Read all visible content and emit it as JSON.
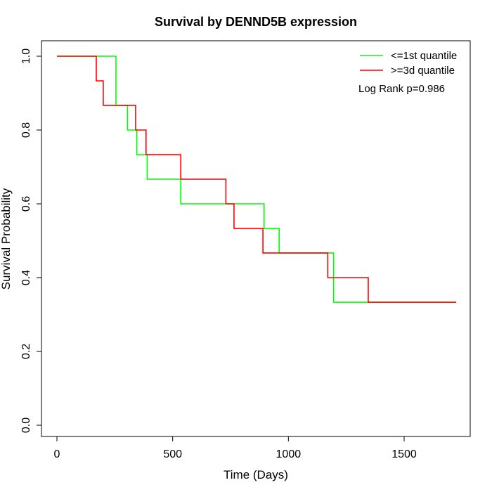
{
  "chart_data": {
    "type": "line",
    "title": "Survival by DENND5B expression",
    "xlabel": "Time (Days)",
    "ylabel": "Survival Probability",
    "xlim": [
      0,
      1750
    ],
    "ylim": [
      0,
      1
    ],
    "x_ticks": [
      0,
      500,
      1000,
      1500
    ],
    "y_ticks": [
      0.0,
      0.2,
      0.4,
      0.6,
      0.8,
      1.0
    ],
    "x_tick_labels": [
      "0",
      "500",
      "1000",
      "1500"
    ],
    "y_tick_labels": [
      "0.0",
      "0.2",
      "0.4",
      "0.6",
      "0.8",
      "1.0"
    ],
    "grid": false,
    "legend_position": "top-right",
    "annotation": "Log Rank p=0.986",
    "series": [
      {
        "name": "<=1st quantile",
        "color": "#00ff00",
        "step": "post",
        "x": [
          0,
          255,
          305,
          345,
          390,
          535,
          895,
          960,
          1195,
          1725
        ],
        "y": [
          1.0,
          0.8667,
          0.8,
          0.7333,
          0.6667,
          0.6,
          0.5333,
          0.4667,
          0.3333,
          0.3333
        ]
      },
      {
        "name": ">=3d quantile",
        "color": "#ff0000",
        "step": "post",
        "x": [
          0,
          170,
          200,
          340,
          385,
          535,
          730,
          765,
          890,
          1170,
          1345,
          1725
        ],
        "y": [
          1.0,
          0.9333,
          0.8667,
          0.8,
          0.7333,
          0.6667,
          0.6,
          0.5333,
          0.4667,
          0.4,
          0.3333,
          0.3333
        ]
      }
    ]
  }
}
